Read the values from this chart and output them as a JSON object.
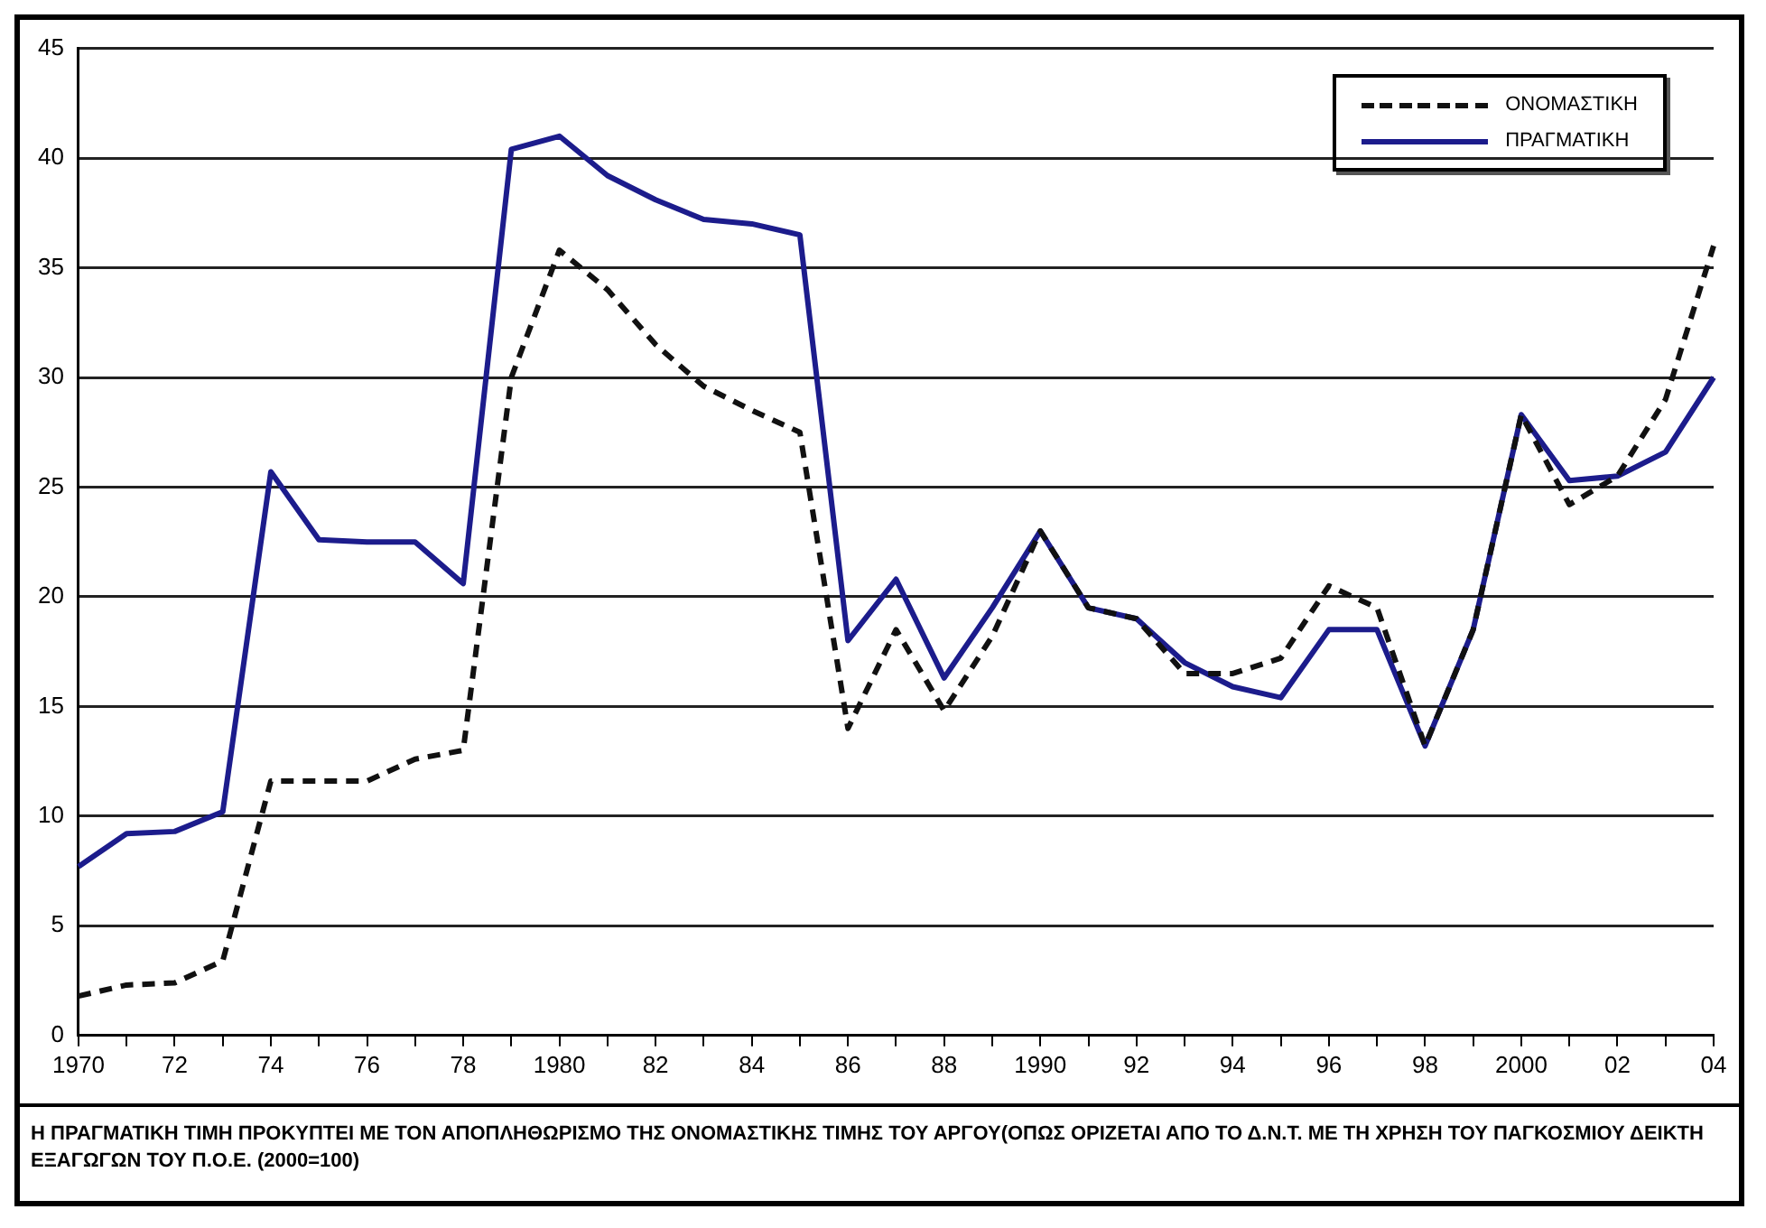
{
  "chart_data": {
    "type": "line",
    "categories": [
      "1970",
      null,
      "72",
      null,
      "74",
      null,
      "76",
      null,
      "78",
      null,
      "1980",
      null,
      "82",
      null,
      "84",
      null,
      "86",
      null,
      "88",
      null,
      "1990",
      null,
      "92",
      null,
      "94",
      null,
      "96",
      null,
      "98",
      null,
      "2000",
      null,
      "02",
      null,
      "04"
    ],
    "series": [
      {
        "name": "ΟΝΟΜΑΣΤΙΚΗ",
        "color": "#111111",
        "line_style": "dashed",
        "values": [
          1.8,
          2.3,
          2.4,
          3.4,
          11.6,
          11.6,
          11.6,
          12.6,
          13,
          30,
          35.8,
          34,
          31.5,
          29.6,
          28.5,
          27.5,
          14,
          18.5,
          14.8,
          18.2,
          23,
          19.5,
          19,
          16.5,
          16.5,
          17.2,
          20.5,
          19.5,
          13.2,
          18.5,
          28.3,
          24.2,
          25.5,
          29,
          36
        ]
      },
      {
        "name": "ΠΡΑΓΜΑΤΙΚΗ",
        "color": "#1c1c8c",
        "line_style": "solid",
        "values": [
          7.7,
          9.2,
          9.3,
          10.2,
          25.7,
          22.6,
          22.5,
          22.5,
          20.6,
          40.4,
          41,
          39.2,
          38.1,
          37.2,
          37,
          36.5,
          18,
          20.8,
          16.3,
          19.5,
          23,
          19.5,
          19,
          17,
          15.9,
          15.4,
          18.5,
          18.5,
          13.2,
          18.5,
          28.3,
          25.3,
          25.5,
          26.6,
          30
        ]
      }
    ],
    "ylim": [
      0,
      45
    ],
    "yticks": [
      0,
      5,
      10,
      15,
      20,
      25,
      30,
      35,
      40,
      45
    ],
    "grid": "y",
    "legend": "top right",
    "marker": "none",
    "annotations": [
      "Η ΠΡΑΓΜΑΤΙΚΗ ΤΙΜΗ ΠΡΟΚΥΠΤΕΙ ΜΕ ΤΟΝ ΑΠΟΠΛΗΘΩΡΙΣΜΟ ΤΗΣ ΟΝΟΜΑΣΤΙΚΗΣ ΤΙΜΗΣ ΤΟΥ ΑΡΓΟΥ(ΟΠΩΣ ΟΡΙΖΕΤΑΙ ΑΠΟ ΤΟ Δ.Ν.Τ. ΜΕ ΤΗ ΧΡΗΣΗ ΤΟΥ ΠΑΓΚΟΣΜΙΟΥ ΔΕΙΚΤΗ ΕΞΑΓΩΓΩΝ ΤΟΥ Π.Ο.Ε. (2000=100)"
    ]
  }
}
